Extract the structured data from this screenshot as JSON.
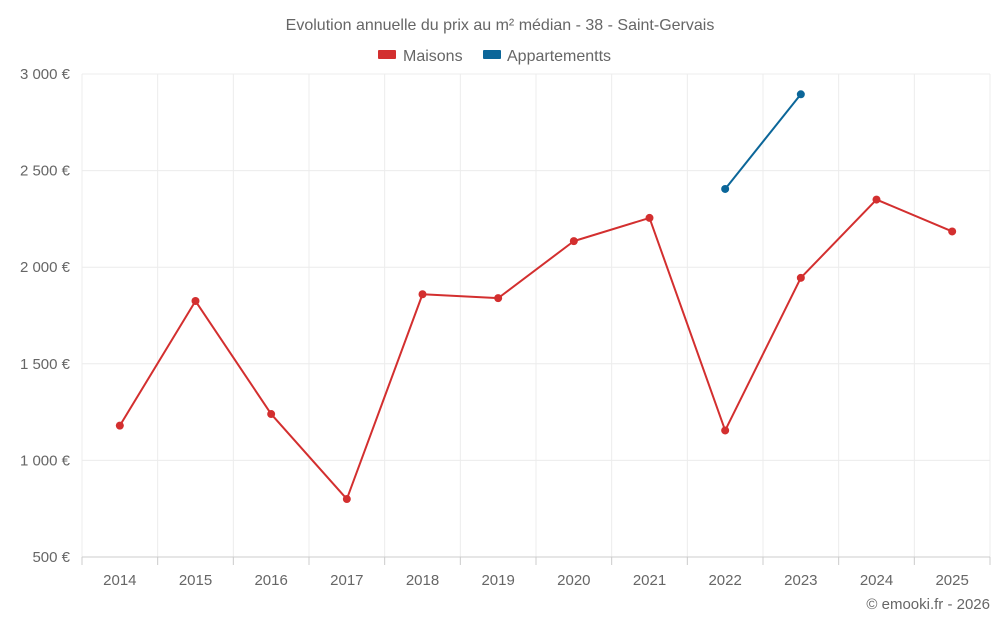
{
  "chart_data": {
    "type": "line",
    "title": "Evolution annuelle du prix au m² médian - 38 - Saint-Gervais",
    "categories": [
      "2014",
      "2015",
      "2016",
      "2017",
      "2018",
      "2019",
      "2020",
      "2021",
      "2022",
      "2023",
      "2024",
      "2025"
    ],
    "series": [
      {
        "name": "Maisons",
        "color": "#d32f2f",
        "values": [
          1180,
          1825,
          1240,
          800,
          1860,
          1840,
          2135,
          2255,
          1155,
          1945,
          2350,
          2185
        ]
      },
      {
        "name": "Appartementts",
        "color": "#0b6699",
        "values": [
          null,
          null,
          null,
          null,
          null,
          null,
          null,
          null,
          2405,
          2895,
          null,
          null
        ]
      }
    ],
    "ylim": [
      500,
      3000
    ],
    "yticks": [
      500,
      1000,
      1500,
      2000,
      2500,
      3000
    ],
    "ytick_labels": [
      "500 €",
      "1 000 €",
      "1 500 €",
      "2 000 €",
      "2 500 €",
      "3 000 €"
    ],
    "grid": true,
    "legend_position": "top-center"
  },
  "credit": "© emooki.fr - 2026"
}
